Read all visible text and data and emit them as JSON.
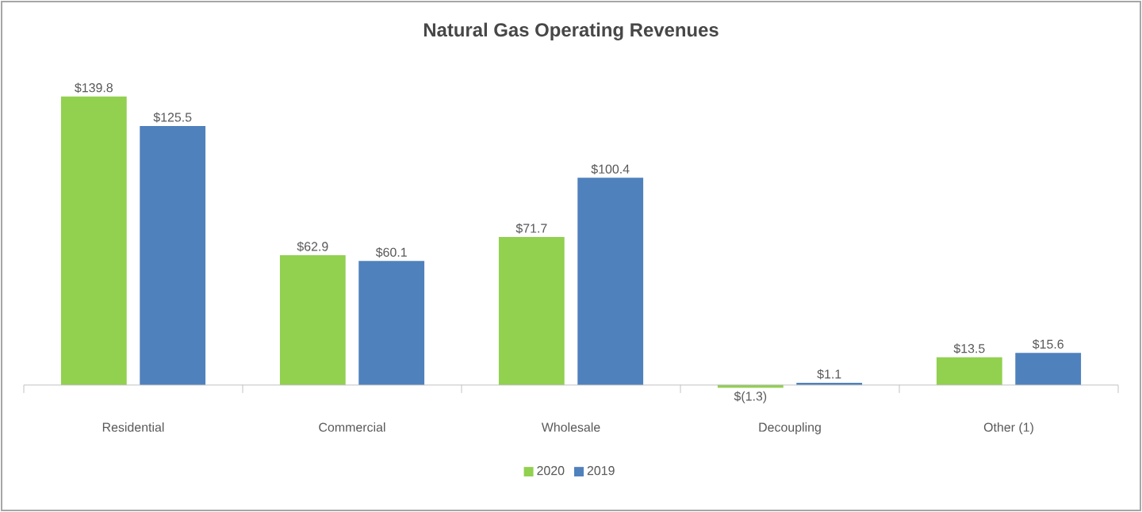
{
  "chart_data": {
    "type": "bar",
    "title": "Natural Gas Operating Revenues",
    "categories": [
      "Residential",
      "Commercial",
      "Wholesale",
      "Decoupling",
      "Other (1)"
    ],
    "series": [
      {
        "name": "2020",
        "color": "#92d050",
        "values": [
          139.8,
          62.9,
          71.7,
          -1.3,
          13.5
        ],
        "value_labels": [
          "$139.8",
          "$62.9",
          "$71.7",
          "$(1.3)",
          "$13.5"
        ]
      },
      {
        "name": "2019",
        "color": "#4f81bd",
        "values": [
          125.5,
          60.1,
          100.4,
          1.1,
          15.6
        ],
        "value_labels": [
          "$125.5",
          "$60.1",
          "$100.4",
          "$1.1",
          "$15.6"
        ]
      }
    ],
    "legend": "bottom"
  }
}
